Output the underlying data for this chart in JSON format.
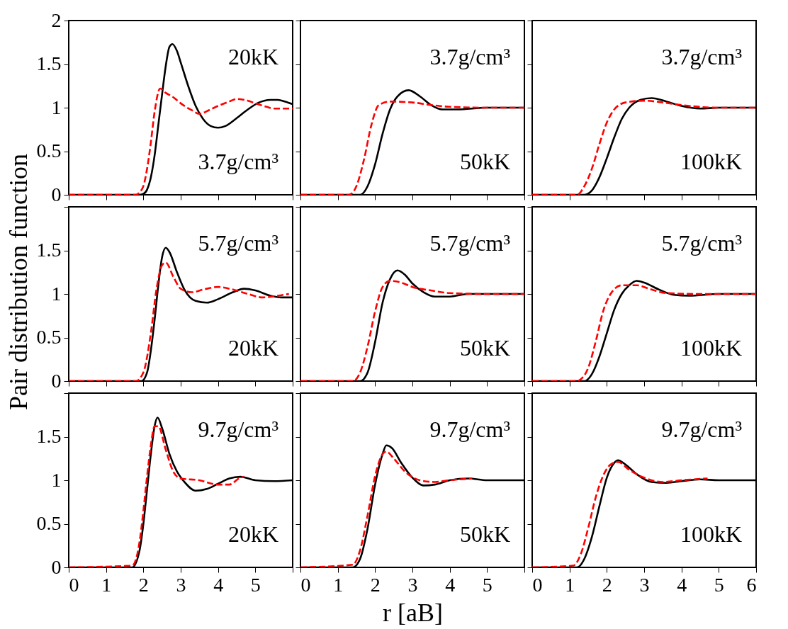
{
  "chart_data": [
    {
      "type": "line",
      "annotations": [
        "20kK",
        "3.7g/cm³"
      ],
      "xlim": [
        0,
        6
      ],
      "ylim": [
        0,
        2
      ],
      "xticks": [
        0,
        1,
        2,
        3,
        4,
        5,
        6
      ],
      "yticks": [
        0,
        0.5,
        1,
        1.5,
        2
      ],
      "tick_labels": "y",
      "grid": false,
      "series": [
        {
          "color": "#000000",
          "line_style": "solid",
          "x": [
            0,
            1.9,
            2.0,
            2.1,
            2.2,
            2.3,
            2.4,
            2.5,
            2.6,
            2.7,
            2.78,
            2.9,
            3.0,
            3.2,
            3.4,
            3.6,
            3.8,
            4.0,
            4.2,
            4.5,
            4.8,
            5.1,
            5.4,
            5.6,
            5.8,
            6.0
          ],
          "values": [
            0,
            0,
            0.01,
            0.06,
            0.2,
            0.45,
            0.8,
            1.15,
            1.48,
            1.7,
            1.73,
            1.65,
            1.52,
            1.25,
            1.02,
            0.87,
            0.79,
            0.77,
            0.79,
            0.88,
            0.98,
            1.06,
            1.09,
            1.09,
            1.07,
            1.04
          ]
        },
        {
          "color": "#ff0000",
          "line_style": "dashed",
          "x": [
            0,
            1.8,
            1.9,
            2.0,
            2.1,
            2.2,
            2.3,
            2.45,
            2.6,
            2.8,
            3.0,
            3.3,
            3.5,
            3.8,
            4.0,
            4.3,
            4.5,
            4.8,
            5.0,
            5.3,
            5.5,
            6.0
          ],
          "values": [
            0,
            0,
            0.03,
            0.1,
            0.3,
            0.6,
            0.95,
            1.22,
            1.17,
            1.12,
            1.05,
            0.97,
            0.93,
            0.98,
            1.02,
            1.07,
            1.1,
            1.08,
            1.05,
            1.01,
            0.99,
            0.99
          ]
        }
      ]
    },
    {
      "type": "line",
      "annotations": [
        "3.7g/cm³",
        "50kK"
      ],
      "xlim": [
        0,
        6
      ],
      "ylim": [
        0,
        2
      ],
      "xticks": [
        0,
        1,
        2,
        3,
        4,
        5,
        6
      ],
      "yticks": [
        0,
        0.5,
        1,
        1.5,
        2
      ],
      "tick_labels": false,
      "grid": false,
      "series": [
        {
          "color": "#000000",
          "line_style": "solid",
          "x": [
            0,
            1.6,
            1.8,
            2.0,
            2.2,
            2.4,
            2.6,
            2.9,
            3.2,
            3.5,
            3.8,
            4.2,
            5.0,
            6.0
          ],
          "values": [
            0,
            0,
            0.1,
            0.35,
            0.7,
            0.98,
            1.13,
            1.2,
            1.13,
            1.03,
            0.98,
            0.98,
            1.0,
            1.0
          ]
        },
        {
          "color": "#ff0000",
          "line_style": "dashed",
          "x": [
            0,
            1.3,
            1.5,
            1.7,
            1.9,
            2.1,
            2.4,
            3.0,
            3.5,
            4.0,
            5.0,
            6.0
          ],
          "values": [
            0,
            0,
            0.1,
            0.4,
            0.8,
            1.03,
            1.07,
            1.06,
            1.03,
            1.01,
            1.0,
            1.0
          ]
        }
      ]
    },
    {
      "type": "line",
      "annotations": [
        "3.7g/cm³",
        "100kK"
      ],
      "xlim": [
        0,
        6
      ],
      "ylim": [
        0,
        2
      ],
      "xticks": [
        0,
        1,
        2,
        3,
        4,
        5,
        6
      ],
      "yticks": [
        0,
        0.5,
        1,
        1.5,
        2
      ],
      "tick_labels": false,
      "grid": false,
      "series": [
        {
          "color": "#000000",
          "line_style": "solid",
          "x": [
            0,
            1.4,
            1.6,
            1.8,
            2.0,
            2.2,
            2.4,
            2.6,
            2.9,
            3.2,
            3.6,
            4.0,
            4.5,
            5.0,
            6.0
          ],
          "values": [
            0,
            0,
            0.05,
            0.2,
            0.42,
            0.66,
            0.87,
            1.0,
            1.09,
            1.11,
            1.07,
            1.02,
            0.99,
            1.0,
            1.0
          ]
        },
        {
          "color": "#ff0000",
          "line_style": "dashed",
          "x": [
            0,
            1.2,
            1.4,
            1.6,
            1.8,
            2.0,
            2.2,
            2.5,
            3.0,
            3.5,
            4.0,
            5.0,
            6.0
          ],
          "values": [
            0,
            0,
            0.1,
            0.3,
            0.58,
            0.83,
            0.98,
            1.06,
            1.08,
            1.06,
            1.03,
            1.0,
            1.0
          ]
        }
      ]
    },
    {
      "type": "line",
      "annotations": [
        "5.7g/cm³",
        "20kK"
      ],
      "xlim": [
        0,
        6
      ],
      "ylim": [
        0,
        2
      ],
      "xticks": [
        0,
        1,
        2,
        3,
        4,
        5,
        6
      ],
      "yticks": [
        0,
        0.5,
        1,
        1.5,
        {
          "value": 2,
          "label": null
        }
      ],
      "tick_labels": "y",
      "grid": false,
      "series": [
        {
          "color": "#000000",
          "line_style": "solid",
          "x": [
            0,
            1.95,
            2.1,
            2.2,
            2.3,
            2.4,
            2.5,
            2.6,
            2.7,
            2.9,
            3.1,
            3.4,
            3.7,
            4.0,
            4.4,
            4.7,
            5.0,
            5.4,
            5.7,
            6.0
          ],
          "values": [
            0,
            0,
            0.1,
            0.35,
            0.7,
            1.1,
            1.42,
            1.53,
            1.48,
            1.25,
            1.05,
            0.92,
            0.9,
            0.94,
            1.02,
            1.06,
            1.04,
            0.98,
            0.96,
            0.96
          ]
        },
        {
          "color": "#ff0000",
          "line_style": "dashed",
          "x": [
            0,
            1.8,
            2.0,
            2.2,
            2.35,
            2.5,
            2.6,
            2.8,
            3.0,
            3.3,
            3.6,
            4.0,
            4.4,
            4.8,
            5.2,
            5.6,
            5.9
          ],
          "values": [
            0,
            0,
            0.1,
            0.55,
            1.05,
            1.33,
            1.36,
            1.2,
            1.06,
            1.02,
            1.05,
            1.08,
            1.05,
            1.0,
            0.96,
            0.98,
            1.0
          ]
        }
      ]
    },
    {
      "type": "line",
      "annotations": [
        "5.7g/cm³",
        "50kK"
      ],
      "xlim": [
        0,
        6
      ],
      "ylim": [
        0,
        2
      ],
      "xticks": [
        0,
        1,
        2,
        3,
        4,
        5,
        6
      ],
      "yticks": [
        0,
        0.5,
        1,
        1.5,
        2
      ],
      "tick_labels": false,
      "grid": false,
      "series": [
        {
          "color": "#000000",
          "line_style": "solid",
          "x": [
            0,
            1.6,
            1.8,
            2.0,
            2.2,
            2.4,
            2.6,
            2.8,
            3.0,
            3.3,
            3.6,
            4.0,
            4.5,
            6.0
          ],
          "values": [
            0,
            0,
            0.1,
            0.45,
            0.9,
            1.17,
            1.27,
            1.22,
            1.12,
            1.02,
            0.97,
            0.97,
            1.0,
            1.0
          ]
        },
        {
          "color": "#ff0000",
          "line_style": "dashed",
          "x": [
            0,
            1.4,
            1.6,
            1.8,
            2.0,
            2.2,
            2.4,
            2.7,
            3.0,
            3.5,
            4.0,
            5.0,
            6.0
          ],
          "values": [
            0,
            0,
            0.1,
            0.4,
            0.8,
            1.08,
            1.15,
            1.13,
            1.08,
            1.04,
            1.01,
            1.0,
            1.0
          ]
        }
      ]
    },
    {
      "type": "line",
      "annotations": [
        "5.7g/cm³",
        "100kK"
      ],
      "xlim": [
        0,
        6
      ],
      "ylim": [
        0,
        2
      ],
      "xticks": [
        0,
        1,
        2,
        3,
        4,
        5,
        6
      ],
      "yticks": [
        0,
        0.5,
        1,
        1.5,
        2
      ],
      "tick_labels": false,
      "grid": false,
      "series": [
        {
          "color": "#000000",
          "line_style": "solid",
          "x": [
            0,
            1.4,
            1.6,
            1.8,
            2.0,
            2.2,
            2.4,
            2.6,
            2.8,
            3.0,
            3.4,
            3.8,
            4.2,
            5.0,
            6.0
          ],
          "values": [
            0,
            0,
            0.08,
            0.28,
            0.55,
            0.82,
            1.0,
            1.1,
            1.15,
            1.13,
            1.05,
            0.99,
            0.98,
            1.0,
            1.0
          ]
        },
        {
          "color": "#ff0000",
          "line_style": "dashed",
          "x": [
            0,
            1.2,
            1.3,
            1.5,
            1.7,
            1.9,
            2.1,
            2.4,
            2.8,
            3.2,
            3.6,
            4.5,
            6.0
          ],
          "values": [
            0,
            0,
            0.02,
            0.15,
            0.45,
            0.8,
            1.0,
            1.1,
            1.1,
            1.05,
            1.01,
            1.0,
            1.0
          ]
        }
      ]
    },
    {
      "type": "line",
      "annotations": [
        "9.7g/cm³",
        "20kK"
      ],
      "xlim": [
        0,
        6
      ],
      "ylim": [
        0,
        2
      ],
      "xticks": [
        0,
        1,
        2,
        3,
        4,
        5,
        {
          "value": 6,
          "label": null
        }
      ],
      "yticks": [
        0,
        0.5,
        1,
        1.5,
        {
          "value": 2,
          "label": null
        }
      ],
      "grid": false,
      "series": [
        {
          "color": "#000000",
          "line_style": "solid",
          "x": [
            0,
            1.7,
            1.9,
            2.0,
            2.1,
            2.2,
            2.3,
            2.38,
            2.5,
            2.7,
            2.9,
            3.1,
            3.4,
            3.7,
            4.0,
            4.3,
            4.6,
            5.0,
            5.5,
            6.0
          ],
          "values": [
            0,
            0,
            0.2,
            0.5,
            0.9,
            1.3,
            1.62,
            1.72,
            1.6,
            1.3,
            1.1,
            0.98,
            0.88,
            0.9,
            0.96,
            1.02,
            1.04,
            1.0,
            0.99,
            1.0
          ]
        },
        {
          "color": "#ff0000",
          "line_style": "dashed",
          "x": [
            0,
            1.7,
            1.9,
            2.0,
            2.1,
            2.2,
            2.3,
            2.4,
            2.6,
            2.8,
            3.0,
            3.5,
            4.0,
            4.3,
            4.6,
            4.7
          ],
          "values": [
            0,
            0.02,
            0.3,
            0.65,
            1.05,
            1.4,
            1.62,
            1.62,
            1.35,
            1.1,
            1.02,
            1.0,
            0.95,
            0.95,
            1.03,
            1.04
          ]
        }
      ]
    },
    {
      "type": "line",
      "annotations": [
        "9.7g/cm³",
        "50kK"
      ],
      "xlabel": "r [aB]",
      "xlim": [
        0,
        6
      ],
      "ylim": [
        0,
        2
      ],
      "xticks": [
        0,
        1,
        2,
        3,
        4,
        5,
        {
          "value": 6,
          "label": null
        }
      ],
      "yticks": [
        0,
        0.5,
        1,
        1.5,
        2
      ],
      "tick_labels": "x",
      "grid": false,
      "series": [
        {
          "color": "#000000",
          "line_style": "solid",
          "x": [
            0,
            1.4,
            1.6,
            1.8,
            2.0,
            2.2,
            2.3,
            2.45,
            2.7,
            3.0,
            3.3,
            3.6,
            4.0,
            4.5,
            5.0,
            6.0
          ],
          "values": [
            0,
            0,
            0.1,
            0.45,
            0.95,
            1.3,
            1.4,
            1.37,
            1.2,
            1.03,
            0.94,
            0.95,
            1.0,
            1.02,
            1.0,
            1.0
          ]
        },
        {
          "color": "#ff0000",
          "line_style": "dashed",
          "x": [
            0,
            1.4,
            1.6,
            1.8,
            2.0,
            2.2,
            2.3,
            2.5,
            2.8,
            3.2,
            3.6,
            4.0,
            4.6
          ],
          "values": [
            0,
            0.03,
            0.2,
            0.6,
            1.05,
            1.3,
            1.33,
            1.25,
            1.1,
            1.0,
            0.98,
            1.0,
            1.02
          ]
        }
      ]
    },
    {
      "type": "line",
      "annotations": [
        "9.7g/cm³",
        "100kK"
      ],
      "xlim": [
        0,
        6
      ],
      "ylim": [
        0,
        2
      ],
      "xticks": [
        0,
        1,
        2,
        3,
        4,
        5,
        6
      ],
      "yticks": [
        0,
        0.5,
        1,
        1.5,
        2
      ],
      "tick_labels": "x",
      "grid": false,
      "series": [
        {
          "color": "#000000",
          "line_style": "solid",
          "x": [
            0,
            1.2,
            1.4,
            1.6,
            1.8,
            2.0,
            2.2,
            2.3,
            2.5,
            2.8,
            3.2,
            3.6,
            4.0,
            4.5,
            5.0,
            6.0
          ],
          "values": [
            0,
            0,
            0.1,
            0.35,
            0.7,
            1.03,
            1.2,
            1.23,
            1.18,
            1.07,
            0.98,
            0.97,
            0.99,
            1.01,
            1.0,
            1.0
          ]
        },
        {
          "color": "#ff0000",
          "line_style": "dashed",
          "x": [
            0,
            1.1,
            1.3,
            1.5,
            1.7,
            1.9,
            2.1,
            2.3,
            2.6,
            3.0,
            3.5,
            4.0,
            4.7
          ],
          "values": [
            0,
            0.02,
            0.15,
            0.45,
            0.8,
            1.05,
            1.18,
            1.21,
            1.12,
            1.03,
            0.98,
            1.0,
            1.02
          ]
        }
      ]
    },
    {
      "type": "other",
      "ylabel": "Pair distribution function"
    }
  ]
}
